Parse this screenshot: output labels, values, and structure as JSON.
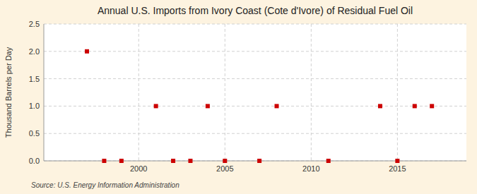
{
  "chart_data": {
    "type": "scatter",
    "title": "Annual U.S. Imports from Ivory Coast (Cote d'Ivore) of Residual Fuel Oil",
    "y_label": "Thousand Barrels per Day",
    "annotations": [
      "Source: U.S. Energy Information Administration"
    ],
    "x": [
      1997,
      1998,
      1999,
      2001,
      2002,
      2003,
      2004,
      2005,
      2007,
      2008,
      2011,
      2014,
      2015,
      2016,
      2017
    ],
    "values": [
      2.0,
      0.0,
      0.0,
      1.0,
      0.0,
      0.0,
      1.0,
      0.0,
      0.0,
      1.0,
      0.0,
      1.0,
      0.0,
      1.0,
      1.0
    ],
    "color": "#cc0000",
    "marker": "square",
    "xlim": [
      1994.5,
      2019
    ],
    "ylim": [
      0.0,
      2.5
    ],
    "xticks": [
      2000,
      2005,
      2010,
      2015
    ],
    "yticks": [
      {
        "value": 0.0,
        "label": "0.0"
      },
      0.5,
      {
        "value": 1.0,
        "label": "1.0"
      },
      1.5,
      {
        "value": 2.0,
        "label": "2.0"
      },
      2.5
    ],
    "grid": true
  }
}
